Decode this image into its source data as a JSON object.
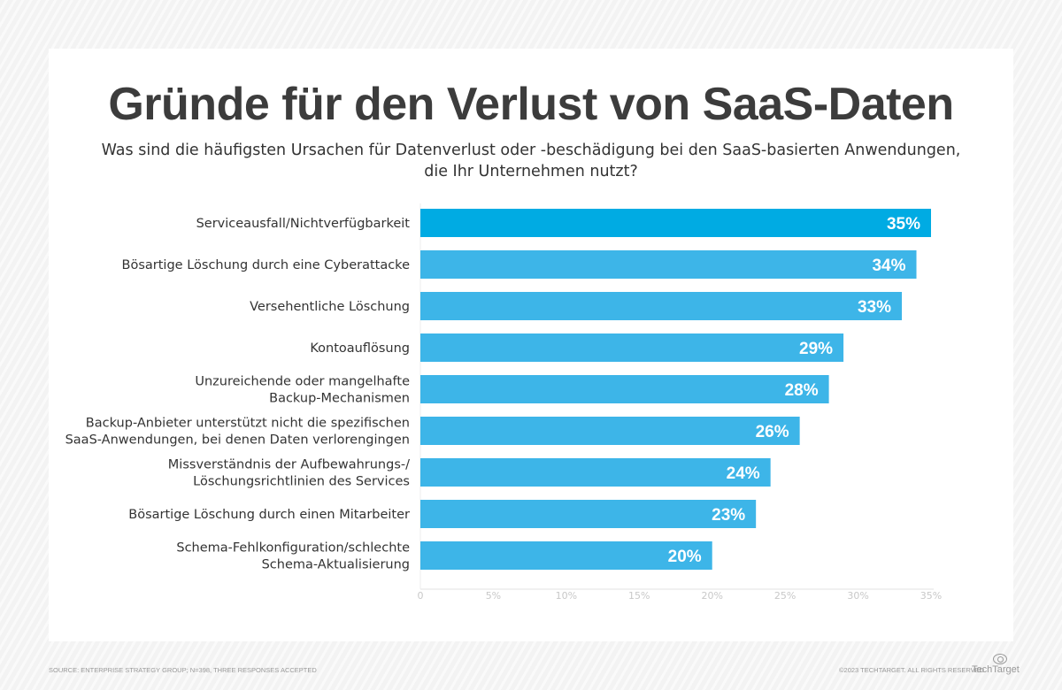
{
  "title": "Gründe für den Verlust von SaaS-Daten",
  "subtitle": "Was sind die häufigsten Ursachen für Datenverlust oder -beschädigung bei den SaaS-basierten Anwendungen, die Ihr Unternehmen nutzt?",
  "footer": {
    "source": "SOURCE: ENTERPRISE STRATEGY GROUP; N=398, THREE RESPONSES ACCEPTED",
    "copyright": "©2023 TECHTARGET. ALL RIGHTS RESERVED",
    "logo": "TechTarget"
  },
  "chart_data": {
    "type": "bar",
    "orientation": "horizontal",
    "categories": [
      [
        "Serviceausfall/Nichtverfügbarkeit"
      ],
      [
        "Bösartige Löschung durch eine Cyberattacke"
      ],
      [
        "Versehentliche Löschung"
      ],
      [
        "Kontoauflösung"
      ],
      [
        "Unzureichende oder mangelhafte",
        "Backup-Mechanismen"
      ],
      [
        "Backup-Anbieter unterstützt nicht die spezifischen",
        "SaaS-Anwendungen, bei denen Daten verlorengingen"
      ],
      [
        "Missverständnis der Aufbewahrungs-/",
        "Löschungsrichtlinien des Services"
      ],
      [
        "Bösartige Löschung durch einen Mitarbeiter"
      ],
      [
        "Schema-Fehlkonfiguration/schlechte",
        "Schema-Aktualisierung"
      ]
    ],
    "values": [
      35,
      34,
      33,
      29,
      28,
      26,
      24,
      23,
      20
    ],
    "data_labels": [
      "35%",
      "34%",
      "33%",
      "29%",
      "28%",
      "26%",
      "24%",
      "23%",
      "20%"
    ],
    "xlim": [
      0,
      35
    ],
    "x_ticks": [
      "0",
      "5%",
      "10%",
      "15%",
      "20%",
      "25%",
      "30%",
      "35%"
    ],
    "grid": false,
    "colors": {
      "highlight": "#00abe3",
      "bar": "#3db5e8",
      "label": "#ffffff"
    }
  }
}
